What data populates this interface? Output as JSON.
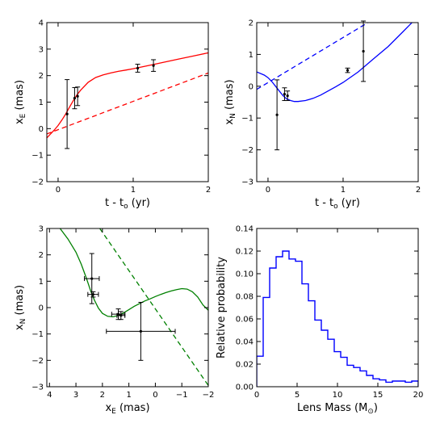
{
  "chart_data": [
    {
      "id": "p1",
      "type": "line",
      "xlabel": "t - t",
      "xlabel_sub": "o",
      "xlabel_unit": " (yr)",
      "ylabel": "x",
      "ylabel_sub": "E",
      "ylabel_unit": " (mas)",
      "xlim": [
        -0.15,
        2.0
      ],
      "ylim": [
        -2,
        4
      ],
      "xticks": [
        0,
        1,
        2
      ],
      "yticks": [
        -2,
        -1,
        0,
        1,
        2,
        3,
        4
      ],
      "grid": false,
      "series": [
        {
          "style": "solid",
          "color": "#ff0000",
          "x": [
            -0.15,
            -0.05,
            0.0,
            0.05,
            0.1,
            0.15,
            0.2,
            0.25,
            0.3,
            0.4,
            0.5,
            0.6,
            0.7,
            0.8,
            0.9,
            1.0,
            1.2,
            1.4,
            1.6,
            1.8,
            2.0
          ],
          "y": [
            -0.35,
            -0.05,
            0.12,
            0.32,
            0.55,
            0.8,
            1.05,
            1.27,
            1.45,
            1.75,
            1.93,
            2.03,
            2.1,
            2.16,
            2.21,
            2.26,
            2.38,
            2.5,
            2.62,
            2.74,
            2.86
          ]
        },
        {
          "style": "dashed",
          "color": "#ff0000",
          "x": [
            -0.15,
            2.0
          ],
          "y": [
            -0.2,
            2.1
          ]
        }
      ],
      "points": [
        {
          "x": 0.12,
          "y": 0.55,
          "yerr": 1.3,
          "xerr": 0
        },
        {
          "x": 0.22,
          "y": 1.15,
          "yerr": 0.4,
          "xerr": 0
        },
        {
          "x": 0.26,
          "y": 1.22,
          "yerr": 0.35,
          "xerr": 0
        },
        {
          "x": 1.06,
          "y": 2.28,
          "yerr": 0.15,
          "xerr": 0
        },
        {
          "x": 1.27,
          "y": 2.38,
          "yerr": 0.22,
          "xerr": 0
        }
      ]
    },
    {
      "id": "p2",
      "type": "line",
      "xlabel": "t - t",
      "xlabel_sub": "o",
      "xlabel_unit": " (yr)",
      "ylabel": "x",
      "ylabel_sub": "N",
      "ylabel_unit": " (mas)",
      "xlim": [
        -0.15,
        2.0
      ],
      "ylim": [
        -3,
        2
      ],
      "xticks": [
        0,
        1,
        2
      ],
      "yticks": [
        -3,
        -2,
        -1,
        0,
        1,
        2
      ],
      "grid": false,
      "series": [
        {
          "style": "solid",
          "color": "#0000ff",
          "x": [
            -0.15,
            -0.05,
            0.0,
            0.05,
            0.1,
            0.15,
            0.2,
            0.25,
            0.3,
            0.35,
            0.4,
            0.5,
            0.6,
            0.7,
            0.8,
            0.9,
            1.0,
            1.2,
            1.4,
            1.6,
            1.8,
            2.0
          ],
          "y": [
            0.45,
            0.35,
            0.27,
            0.15,
            0.0,
            -0.15,
            -0.3,
            -0.4,
            -0.45,
            -0.48,
            -0.48,
            -0.45,
            -0.38,
            -0.28,
            -0.15,
            -0.02,
            0.12,
            0.45,
            0.85,
            1.25,
            1.72,
            2.2
          ]
        },
        {
          "style": "dashed",
          "color": "#0000ff",
          "x": [
            -0.15,
            2.0
          ],
          "y": [
            -0.1,
            2.95
          ]
        }
      ],
      "points": [
        {
          "x": 0.12,
          "y": -0.9,
          "yerr": 1.1,
          "xerr": 0
        },
        {
          "x": 0.22,
          "y": -0.25,
          "yerr": 0.2,
          "xerr": 0
        },
        {
          "x": 0.26,
          "y": -0.3,
          "yerr": 0.15,
          "xerr": 0
        },
        {
          "x": 1.06,
          "y": 0.5,
          "yerr": 0.07,
          "xerr": 0
        },
        {
          "x": 1.27,
          "y": 1.1,
          "yerr": 0.95,
          "xerr": 0
        }
      ]
    },
    {
      "id": "p3",
      "type": "line",
      "xlabel": "x",
      "xlabel_sub": "E",
      "xlabel_unit": " (mas)",
      "ylabel": "x",
      "ylabel_sub": "N",
      "ylabel_unit": " (mas)",
      "xlim": [
        4.1,
        -2.0
      ],
      "ylim": [
        -3,
        3
      ],
      "xticks": [
        4,
        3,
        2,
        1,
        0,
        -1,
        -2
      ],
      "yticks": [
        -3,
        -2,
        -1,
        0,
        1,
        2,
        3
      ],
      "grid": false,
      "series": [
        {
          "style": "solid",
          "color": "#008000",
          "x": [
            3.6,
            3.3,
            3.0,
            2.8,
            2.6,
            2.45,
            2.3,
            2.15,
            2.0,
            1.8,
            1.6,
            1.4,
            1.2,
            1.0,
            0.8,
            0.6,
            0.4,
            0.2,
            0.0,
            -0.2,
            -0.4,
            -0.6,
            -0.8,
            -1.0,
            -1.2,
            -1.4,
            -1.6,
            -1.8,
            -2.0
          ],
          "y": [
            3.0,
            2.6,
            2.1,
            1.65,
            1.1,
            0.65,
            0.28,
            -0.02,
            -0.22,
            -0.33,
            -0.35,
            -0.3,
            -0.2,
            -0.08,
            0.05,
            0.15,
            0.25,
            0.33,
            0.42,
            0.5,
            0.57,
            0.63,
            0.68,
            0.72,
            0.7,
            0.6,
            0.4,
            0.1,
            -0.1
          ]
        },
        {
          "style": "dashed",
          "color": "#008000",
          "x": [
            2.1,
            -2.0
          ],
          "y": [
            3.0,
            -2.95
          ]
        }
      ],
      "points": [
        {
          "x": 2.4,
          "y": 1.1,
          "yerr": 0.95,
          "xerr": 0.28
        },
        {
          "x": 2.35,
          "y": 0.5,
          "yerr": 0.1,
          "xerr": 0.2
        },
        {
          "x": 1.4,
          "y": -0.25,
          "yerr": 0.2,
          "xerr": 0.25
        },
        {
          "x": 1.3,
          "y": -0.3,
          "yerr": 0.15,
          "xerr": 0.15
        },
        {
          "x": 0.55,
          "y": -0.9,
          "yerr": 1.1,
          "xerr": 1.3
        }
      ]
    },
    {
      "id": "p4",
      "type": "histogram",
      "xlabel": "Lens Mass (M",
      "xlabel_sub": "⊙",
      "xlabel_unit": ")",
      "ylabel": "Relative probability",
      "xlim": [
        0,
        20
      ],
      "ylim": [
        0,
        0.14
      ],
      "xticks": [
        0,
        5,
        10,
        15,
        20
      ],
      "yticks": [
        0.0,
        0.02,
        0.04,
        0.06,
        0.08,
        0.1,
        0.12,
        0.14
      ],
      "ytick_labels": [
        "0.00",
        "0.02",
        "0.04",
        "0.06",
        "0.08",
        "0.10",
        "0.12",
        "0.14"
      ],
      "grid": false,
      "color": "#0000ff",
      "bin_width": 0.8,
      "x_start": 0,
      "values": [
        0.027,
        0.079,
        0.105,
        0.115,
        0.12,
        0.113,
        0.111,
        0.091,
        0.076,
        0.059,
        0.05,
        0.042,
        0.031,
        0.026,
        0.019,
        0.017,
        0.014,
        0.01,
        0.007,
        0.006,
        0.004,
        0.005,
        0.005,
        0.004,
        0.005
      ]
    }
  ]
}
